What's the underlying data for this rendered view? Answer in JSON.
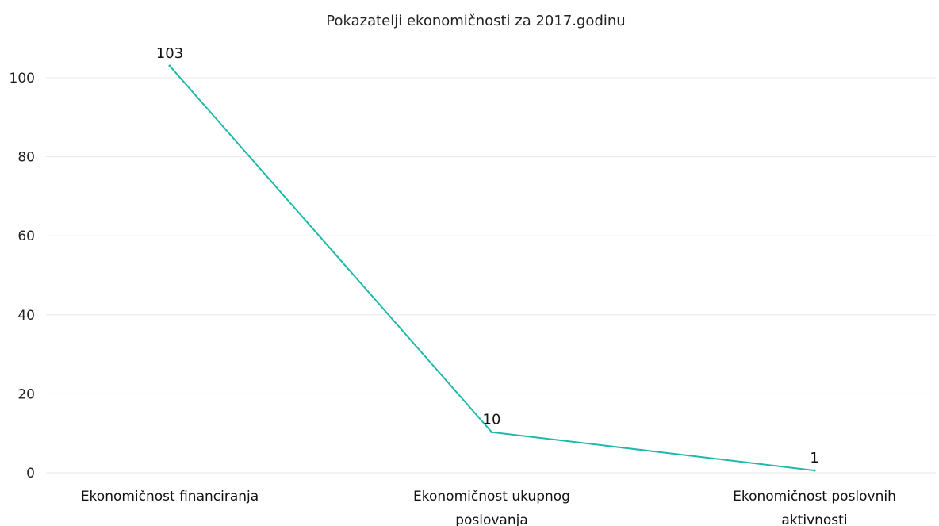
{
  "chart_data": {
    "type": "line",
    "title": "Pokazatelji ekonomičnosti za 2017.godinu",
    "categories": [
      [
        "Ekonomičnost financiranja"
      ],
      [
        "Ekonomičnost ukupnog",
        "poslovanja"
      ],
      [
        "Ekonomičnost poslovnih",
        "aktivnosti"
      ]
    ],
    "series": [
      {
        "values": [
          103,
          10.3,
          0.6
        ],
        "data_labels": [
          "103",
          "10",
          "1"
        ]
      }
    ],
    "ylim": [
      0,
      100
    ],
    "yticks": [
      "0",
      "20",
      "40",
      "60",
      "80",
      "100"
    ],
    "grid": true,
    "legend": "none",
    "colors": {
      "line": "#1fb9aa",
      "grid": "#e8e8e8",
      "text": "#222222"
    }
  }
}
